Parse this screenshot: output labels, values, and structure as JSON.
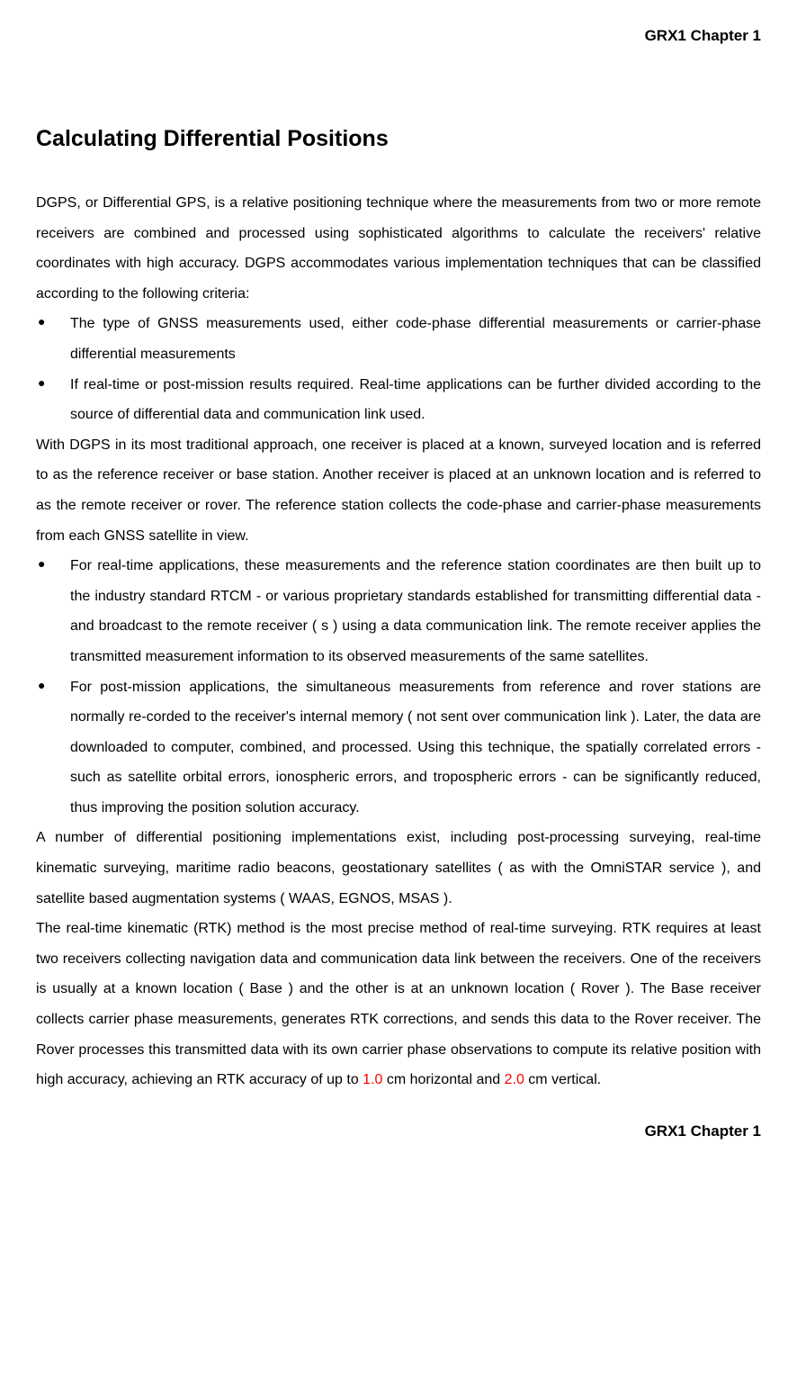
{
  "header": {
    "right": "GRX1 Chapter 1"
  },
  "heading": "Calculating Differential Positions",
  "body": {
    "paragraphs": [
      "DGPS, or Differential GPS, is a relative positioning technique where the measurements from two or more remote receivers are combined and processed using sophisticated algorithms to calculate the receivers' relative coordinates with high accuracy.   DGPS accommodates various implementation techniques that can be classified according to the following criteria:",
      "With DGPS in its most traditional approach, one receiver is placed at a known, surveyed location and is referred to as the reference receiver or base station.   Another receiver is placed at an unknown location and is referred to as the remote receiver or rover.   The reference station collects the code-phase and carrier-phase measurements from each GNSS satellite in view.",
      "A number of differential positioning implementations exist, including post-processing surveying, real-time kinematic surveying, maritime radio beacons, geostationary satellites ( as with the OmniSTAR service ), and satellite based augmentation systems ( WAAS, EGNOS, MSAS ).",
      {
        "pre": "The real-time kinematic (RTK) method is the most precise method of real-time surveying.   RTK requires at least two receivers collecting navigation data and communication data link between the receivers.   One of the receivers is usually at a known location ( Base ) and the other is at an unknown location ( Rover ).   The Base receiver collects carrier phase measurements, generates RTK corrections, and sends this data to the Rover receiver.   The Rover processes this transmitted data with its own carrier phase observations to compute its relative position with high accuracy, achieving an RTK accuracy of up to ",
        "val1": "1.0",
        "mid": " cm horizontal and ",
        "val2": "2.0",
        "post": " cm vertical."
      }
    ],
    "bullets1": [
      "The type of GNSS measurements used, either code-phase differential measurements or carrier-phase differential measurements",
      "If real-time or post-mission results required.   Real-time applications can be further divided according to the source of differential data and communication link used."
    ],
    "bullets2": [
      "For real-time applications, these measurements and the reference station coordinates are then built up to the industry standard RTCM - or various proprietary standards established for transmitting differential data - and broadcast to the remote receiver ( s ) using a data communication link.   The remote receiver applies the transmitted measurement information to its observed measurements of the same satellites.",
      "For post-mission applications, the simultaneous measurements from reference and rover stations are normally re-corded to the receiver's internal memory ( not sent over communication link ).   Later, the data are downloaded to computer, combined, and processed.   Using this technique, the spatially correlated errors - such as satellite orbital errors, ionospheric errors, and tropospheric errors - can be significantly reduced, thus improving the position solution accuracy."
    ]
  },
  "footer": {
    "right": "GRX1 Chapter 1"
  },
  "colors": {
    "text": "#000000",
    "highlight": "#ff0000",
    "background": "#ffffff"
  },
  "typography": {
    "body_fontsize": 16,
    "heading_fontsize": 25,
    "header_fontsize": 17,
    "line_height": 2.1,
    "font_family": "Verdana"
  }
}
